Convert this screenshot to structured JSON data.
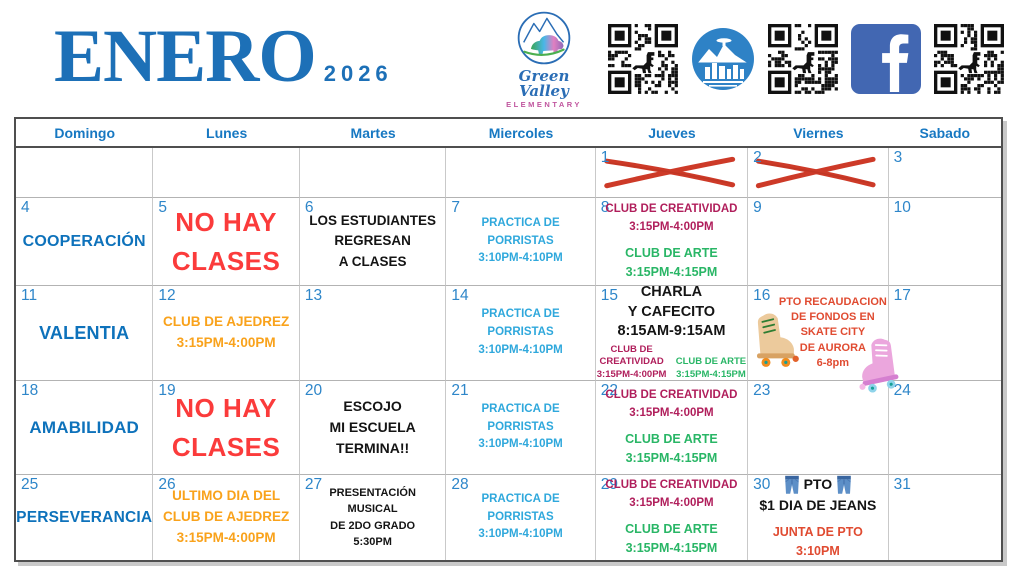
{
  "header": {
    "month": "ENERO",
    "year": "2026",
    "school_logo": {
      "name": "Green Valley",
      "subtitle": "ELEMENTARY"
    },
    "icons": [
      "green-valley-elementary-logo",
      "qr-code",
      "city-of-aurora-logo",
      "qr-code",
      "facebook-logo",
      "qr-code"
    ]
  },
  "palette": {
    "title_blue": "#1d70b7",
    "weekday_blue": "#1778c2",
    "date_blue": "#2e86c9",
    "value_word_blue": "#0e72bb",
    "no_school_red": "#fb3b3b",
    "cross_red": "#cd3a28",
    "cheer_cyan": "#2fa8dc",
    "creativity_magenta": "#b01e5b",
    "art_green": "#29b666",
    "chess_orange": "#f9a21b",
    "pto_red_orange": "#e04b31",
    "text_black": "#141414",
    "facebook_blue": "#4267b2"
  },
  "calendar": {
    "weekdays": [
      "Domingo",
      "Lunes",
      "Martes",
      "Miercoles",
      "Jueves",
      "Viernes",
      "Sabado"
    ],
    "weeks": [
      [
        {},
        {},
        {},
        {},
        {
          "date": "1",
          "crossed": true
        },
        {
          "date": "2",
          "crossed": true
        },
        {
          "date": "3"
        }
      ],
      [
        {
          "date": "4",
          "events": [
            {
              "style": "blue-word",
              "size": 16,
              "lines": [
                "COOPERACIÓN"
              ]
            }
          ]
        },
        {
          "date": "5",
          "events": [
            {
              "style": "red-big",
              "lines": [
                "NO HAY",
                "CLASES"
              ]
            }
          ]
        },
        {
          "date": "6",
          "events": [
            {
              "style": "black-md",
              "size": 13.5,
              "lines": [
                "LOS ESTUDIANTES",
                "REGRESAN",
                "A CLASES"
              ]
            }
          ]
        },
        {
          "date": "7",
          "events": [
            {
              "style": "cyan",
              "lines": [
                "PRACTICA DE",
                "PORRISTAS",
                "3:10PM-4:10PM"
              ]
            }
          ]
        },
        {
          "date": "8",
          "events": [
            {
              "style": "magenta",
              "lines": [
                "CLUB DE CREATIVIDAD",
                "3:15PM-4:00PM"
              ]
            },
            {
              "style": "green",
              "lines": [
                "CLUB DE ARTE",
                "3:15PM-4:15PM"
              ]
            }
          ]
        },
        {
          "date": "9"
        },
        {
          "date": "10"
        }
      ],
      [
        {
          "date": "11",
          "events": [
            {
              "style": "blue-word",
              "size": 18,
              "lines": [
                "VALENTIA"
              ]
            }
          ]
        },
        {
          "date": "12",
          "events": [
            {
              "style": "orange",
              "lines": [
                "CLUB DE AJEDREZ",
                "3:15PM-4:00PM"
              ]
            }
          ]
        },
        {
          "date": "13"
        },
        {
          "date": "14",
          "events": [
            {
              "style": "cyan",
              "lines": [
                "PRACTICA DE",
                "PORRISTAS",
                "3:10PM-4:10PM"
              ]
            }
          ]
        },
        {
          "date": "15",
          "events": [
            {
              "style": "black-lg",
              "lines": [
                "CHARLA",
                "Y CAFECITO",
                "8:15AM-9:15AM"
              ]
            },
            {
              "cols": [
                {
                  "style": "magenta-sm",
                  "lines": [
                    "CLUB DE",
                    "CREATIVIDAD",
                    "3:15PM-4:00PM"
                  ]
                },
                {
                  "style": "green-sm",
                  "lines": [
                    "CLUB DE ARTE",
                    "3:15PM-4:15PM"
                  ]
                }
              ]
            }
          ]
        },
        {
          "date": "16",
          "icons": [
            {
              "icon": "roller-skate-icon",
              "variant": "tan",
              "position": "pos-left"
            },
            {
              "icon": "roller-skate-icon",
              "variant": "pink",
              "position": "pos-bottom-right"
            }
          ],
          "events": [
            {
              "style": "redorange",
              "lines": [
                "PTO RECAUDACION",
                "DE FONDOS EN",
                "SKATE CITY",
                "DE AURORA",
                "6-8pm"
              ]
            }
          ]
        },
        {
          "date": "17"
        }
      ],
      [
        {
          "date": "18",
          "events": [
            {
              "style": "blue-word",
              "size": 17,
              "lines": [
                "AMABILIDAD"
              ]
            }
          ]
        },
        {
          "date": "19",
          "events": [
            {
              "style": "red-big",
              "lines": [
                "NO HAY",
                "CLASES"
              ]
            }
          ]
        },
        {
          "date": "20",
          "events": [
            {
              "style": "black-md",
              "size": 14,
              "lines": [
                "ESCOJO",
                "MI ESCUELA",
                "TERMINA!!"
              ]
            }
          ]
        },
        {
          "date": "21",
          "events": [
            {
              "style": "cyan",
              "lines": [
                "PRACTICA DE",
                "PORRISTAS",
                "3:10PM-4:10PM"
              ]
            }
          ]
        },
        {
          "date": "22",
          "events": [
            {
              "style": "magenta",
              "lines": [
                "CLUB DE CREATIVIDAD",
                "3:15PM-4:00PM"
              ]
            },
            {
              "style": "green",
              "lines": [
                "CLUB DE ARTE",
                "3:15PM-4:15PM"
              ]
            }
          ]
        },
        {
          "date": "23"
        },
        {
          "date": "24"
        }
      ],
      [
        {
          "date": "25",
          "events": [
            {
              "style": "blue-word",
              "size": 15.5,
              "lines": [
                "PERSEVERANCIA"
              ]
            }
          ]
        },
        {
          "date": "26",
          "events": [
            {
              "style": "orange",
              "lines": [
                "ULTIMO DIA DEL",
                "CLUB DE AJEDREZ",
                "3:15PM-4:00PM"
              ]
            }
          ]
        },
        {
          "date": "27",
          "events": [
            {
              "style": "black-sm",
              "lines": [
                "PRESENTACIÓN",
                "MUSICAL",
                "DE 2DO GRADO",
                "5:30PM"
              ]
            }
          ]
        },
        {
          "date": "28",
          "events": [
            {
              "style": "cyan",
              "lines": [
                "PRACTICA DE",
                "PORRISTAS",
                "3:10PM-4:10PM"
              ]
            }
          ]
        },
        {
          "date": "29",
          "events": [
            {
              "style": "magenta",
              "lines": [
                "CLUB DE CREATIVIDAD",
                "3:15PM-4:00PM"
              ]
            },
            {
              "style": "green",
              "lines": [
                "CLUB DE ARTE",
                "3:15PM-4:15PM"
              ]
            }
          ]
        },
        {
          "date": "30",
          "events": [
            {
              "style": "black-md",
              "size": 14,
              "lines": [
                {
                  "text": "PTO",
                  "icon_before": "jeans-icon",
                  "icon_after": "jeans-icon"
                },
                "$1 DIA DE JEANS"
              ]
            },
            {
              "style": "redorange-md",
              "lines": [
                "JUNTA DE PTO",
                "3:10PM"
              ]
            }
          ]
        },
        {
          "date": "31"
        }
      ]
    ]
  }
}
